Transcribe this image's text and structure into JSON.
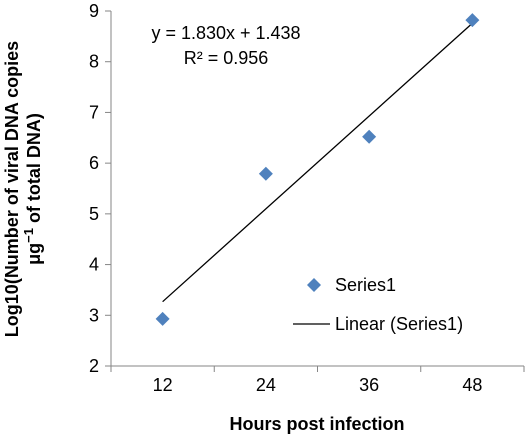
{
  "chart_data": {
    "type": "scatter",
    "title": "",
    "xlabel": "Hours post infection",
    "ylabel_line1": "Log10(Number of viral DNA copies",
    "ylabel_line2": "μg",
    "ylabel_superscript": "−1",
    "ylabel_line2_suffix": " of total DNA)",
    "xlim": [
      0,
      4
    ],
    "ylim": [
      2,
      9
    ],
    "x_categories": [
      "12",
      "24",
      "36",
      "48"
    ],
    "y_ticks": [
      "2",
      "3",
      "4",
      "5",
      "6",
      "7",
      "8",
      "9"
    ],
    "series": [
      {
        "name": "Series1",
        "marker": "diamond",
        "color": "#4F81BD",
        "x": [
          12,
          24,
          36,
          48
        ],
        "y": [
          2.93,
          5.79,
          6.52,
          8.82
        ]
      }
    ],
    "trendline": {
      "name": "Linear (Series1)",
      "type": "linear",
      "slope": 1.83,
      "intercept": 1.438,
      "color": "#000000"
    },
    "annotations": {
      "equation": "y = 1.830x + 1.438",
      "r_squared": "R² = 0.956"
    },
    "legend": {
      "position": "bottom-right",
      "entries": [
        "Series1",
        "Linear (Series1)"
      ]
    },
    "grid": false
  }
}
